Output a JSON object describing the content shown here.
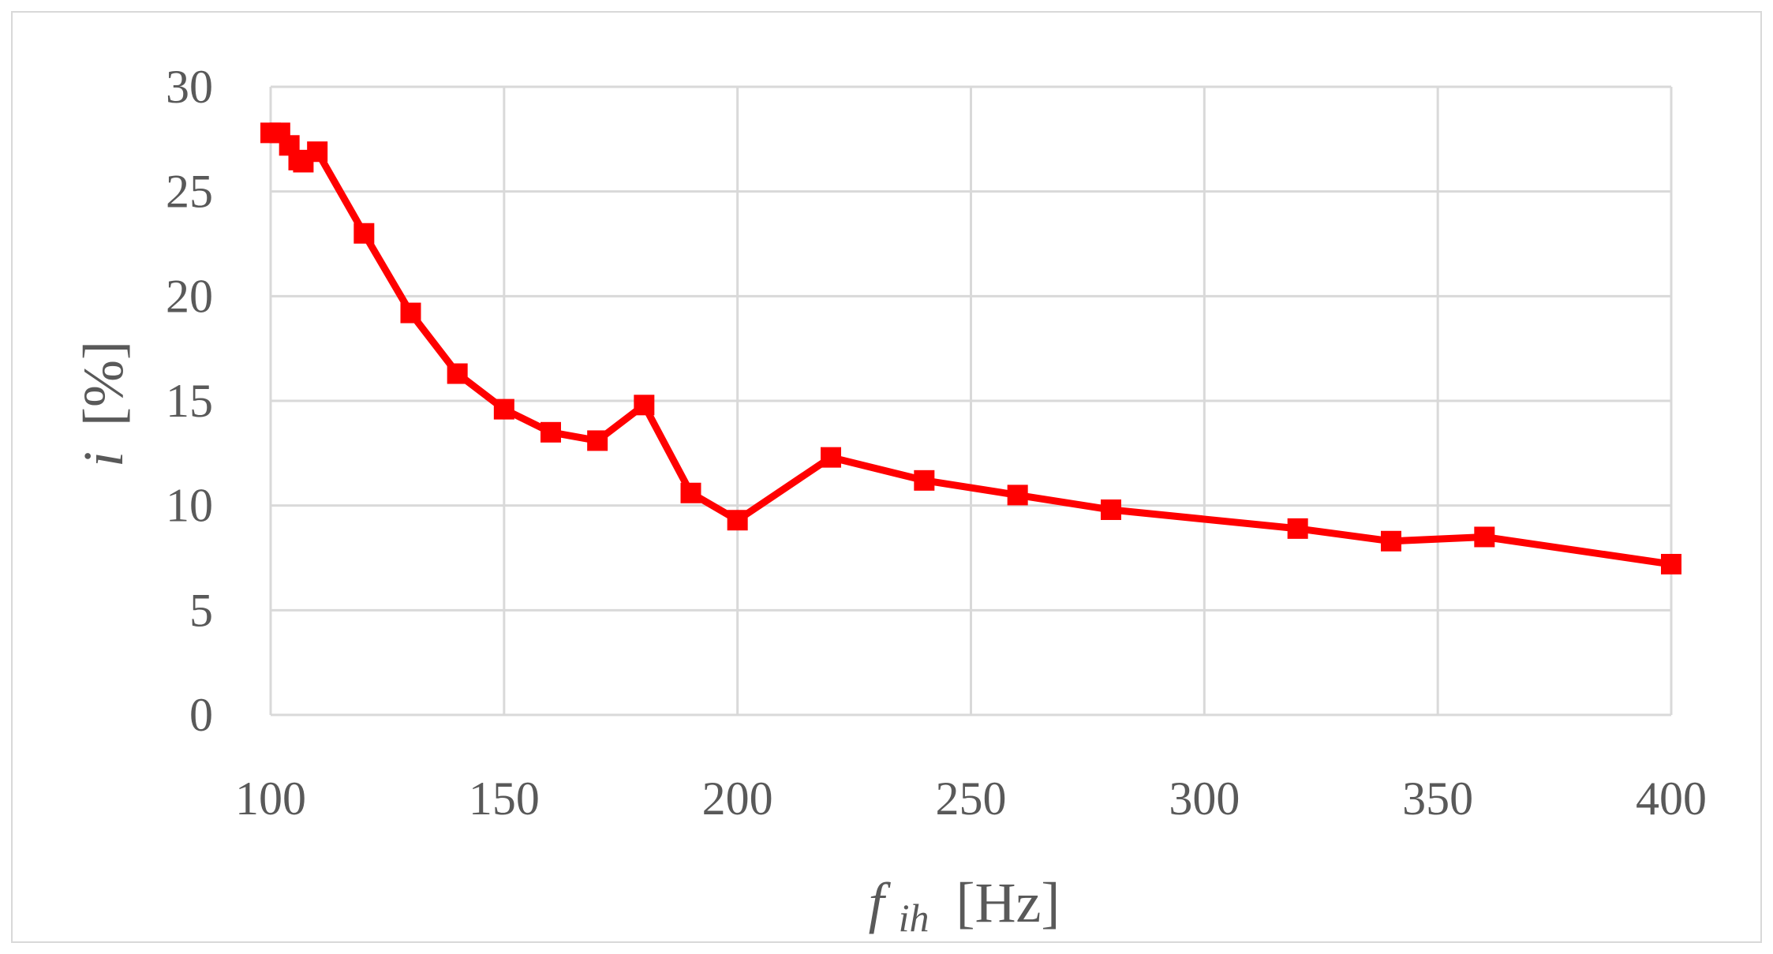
{
  "colors": {
    "series": "#ff0000",
    "grid": "#d9d9d9",
    "text": "#595959",
    "frame": "#d9d9d9"
  },
  "chart_data": {
    "type": "line",
    "marker": "square",
    "grid": "major-x-and-y",
    "legend": "none",
    "xlabel": {
      "symbol": "f",
      "subscript": "ih",
      "unit": "[Hz]"
    },
    "ylabel": {
      "symbol": "i",
      "unit": "[%]"
    },
    "xlim": [
      100,
      400
    ],
    "ylim": [
      0,
      30
    ],
    "xticks": [
      100,
      150,
      200,
      250,
      300,
      350,
      400
    ],
    "yticks": [
      0,
      5,
      10,
      15,
      20,
      25,
      30
    ],
    "xtick_labels": [
      "100",
      "150",
      "200",
      "250",
      "300",
      "350",
      "400"
    ],
    "ytick_labels": [
      "0",
      "5",
      "10",
      "15",
      "20",
      "25",
      "30"
    ],
    "series": [
      {
        "x": [
          100,
          102,
          104,
          106,
          107,
          110,
          120,
          130,
          140,
          150,
          160,
          170,
          180,
          190,
          200,
          220,
          240,
          260,
          280,
          320,
          340,
          360,
          400
        ],
        "y": [
          27.8,
          27.8,
          27.2,
          26.5,
          26.4,
          26.9,
          23.0,
          19.2,
          16.3,
          14.6,
          13.5,
          13.1,
          14.8,
          10.6,
          9.3,
          12.3,
          11.2,
          10.5,
          9.8,
          8.9,
          8.3,
          8.5,
          7.2
        ]
      }
    ]
  }
}
